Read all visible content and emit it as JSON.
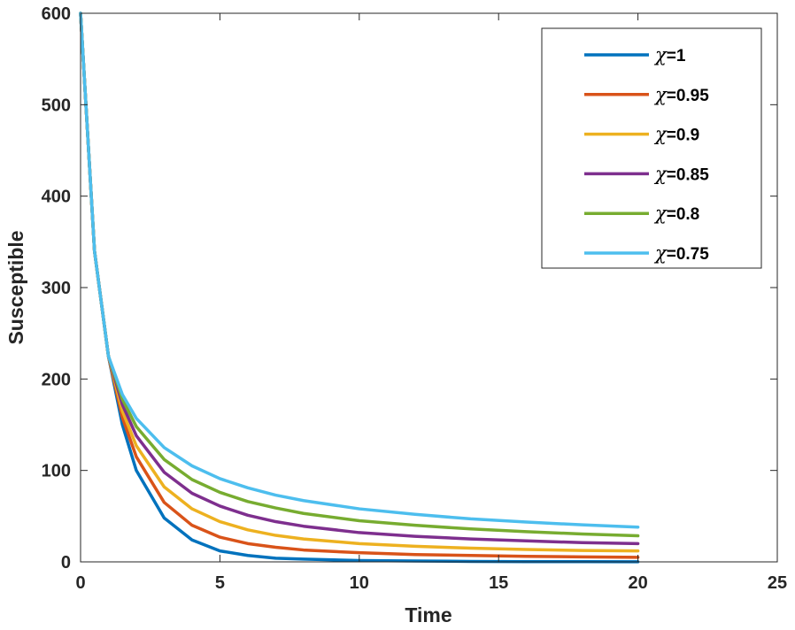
{
  "chart_data": {
    "type": "line",
    "title": "",
    "xlabel": "Time",
    "ylabel": "Susceptible",
    "xlim": [
      0,
      25
    ],
    "ylim": [
      0,
      600
    ],
    "xticks": [
      0,
      5,
      10,
      15,
      20,
      25
    ],
    "xtick_labels": [
      "0",
      "5",
      "10",
      "15",
      "20",
      "25"
    ],
    "yticks": [
      0,
      100,
      200,
      300,
      400,
      500,
      600
    ],
    "ytick_labels": [
      "0",
      "100",
      "200",
      "300",
      "400",
      "500",
      "600"
    ],
    "grid": false,
    "legend_position": "top-right",
    "x": [
      0,
      0.5,
      1,
      1.5,
      2,
      3,
      4,
      5,
      6,
      7,
      8,
      10,
      12,
      14,
      16,
      18,
      20
    ],
    "series": [
      {
        "name": "χ=1",
        "legend_symbol": "χ",
        "legend_value": "=1",
        "color": "#0072BD",
        "values": [
          600,
          340,
          225,
          150,
          100,
          48,
          24,
          12,
          7,
          4,
          3,
          1.5,
          1,
          0.5,
          0.3,
          0.2,
          0.1
        ]
      },
      {
        "name": "χ=0.95",
        "legend_symbol": "χ",
        "legend_value": "=0.95",
        "color": "#D95319",
        "values": [
          600,
          340,
          225,
          158,
          115,
          65,
          40,
          27,
          20,
          16,
          13,
          10,
          8,
          7,
          6,
          5.5,
          5
        ]
      },
      {
        "name": "χ=0.9",
        "legend_symbol": "χ",
        "legend_value": "=0.9",
        "color": "#EDB120",
        "values": [
          600,
          340,
          225,
          165,
          127,
          82,
          58,
          44,
          35,
          29,
          25,
          20,
          17,
          15,
          13.5,
          12.5,
          12
        ]
      },
      {
        "name": "χ=0.85",
        "legend_symbol": "χ",
        "legend_value": "=0.85",
        "color": "#7E2F8E",
        "values": [
          600,
          340,
          225,
          172,
          138,
          98,
          75,
          61,
          51,
          44,
          39,
          32,
          28,
          25,
          23,
          21,
          20
        ]
      },
      {
        "name": "χ=0.8",
        "legend_symbol": "χ",
        "legend_value": "=0.8",
        "color": "#77AC30",
        "values": [
          600,
          340,
          225,
          178,
          148,
          112,
          90,
          76,
          66,
          59,
          53,
          45,
          40,
          36,
          33,
          30.5,
          28.5
        ]
      },
      {
        "name": "χ=0.75",
        "legend_symbol": "χ",
        "legend_value": "=0.75",
        "color": "#4DBEEE",
        "values": [
          600,
          340,
          225,
          183,
          157,
          125,
          105,
          91,
          81,
          73,
          67,
          58,
          52,
          47,
          43.5,
          40.5,
          38
        ]
      }
    ]
  }
}
